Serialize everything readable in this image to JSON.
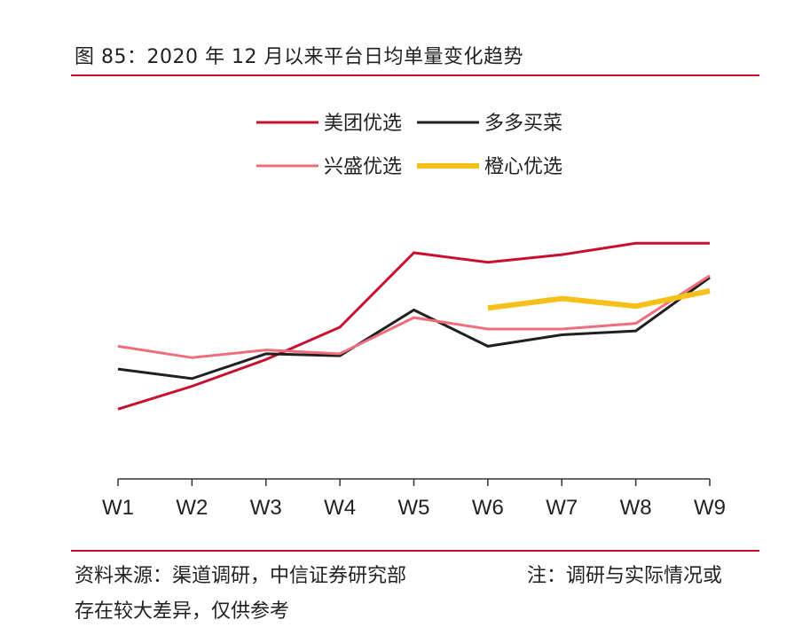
{
  "figure": {
    "title": "图 85：2020 年 12 月以来平台日均单量变化趋势"
  },
  "footer": {
    "source_line1": "资料来源：渠道调研，中信证券研究部",
    "source_line2": "存在较大差异，仅供参考",
    "note": "注：调研与实际情况或"
  },
  "chart_data": {
    "type": "line",
    "title": "",
    "xlabel": "",
    "ylabel": "",
    "categories": [
      "W1",
      "W2",
      "W3",
      "W4",
      "W5",
      "W6",
      "W7",
      "W8",
      "W9"
    ],
    "y_axis_visible": false,
    "grid": false,
    "legend": "top",
    "ylim": [
      0,
      100
    ],
    "series": [
      {
        "name": "美团优选",
        "color": "#c8102e",
        "values": [
          18,
          30,
          44,
          61,
          100,
          95,
          99,
          105,
          105
        ]
      },
      {
        "name": "多多买菜",
        "color": "#231f20",
        "values": [
          39,
          34,
          47,
          46,
          70,
          51,
          57,
          59,
          87
        ]
      },
      {
        "name": "兴盛优选",
        "color": "#ee6f7b",
        "values": [
          51,
          45,
          49,
          47,
          66,
          60,
          60,
          63,
          88
        ]
      },
      {
        "name": "橙心优选",
        "color": "#f5c01a",
        "values": [
          null,
          null,
          null,
          null,
          null,
          71,
          76,
          72,
          80
        ]
      }
    ]
  }
}
